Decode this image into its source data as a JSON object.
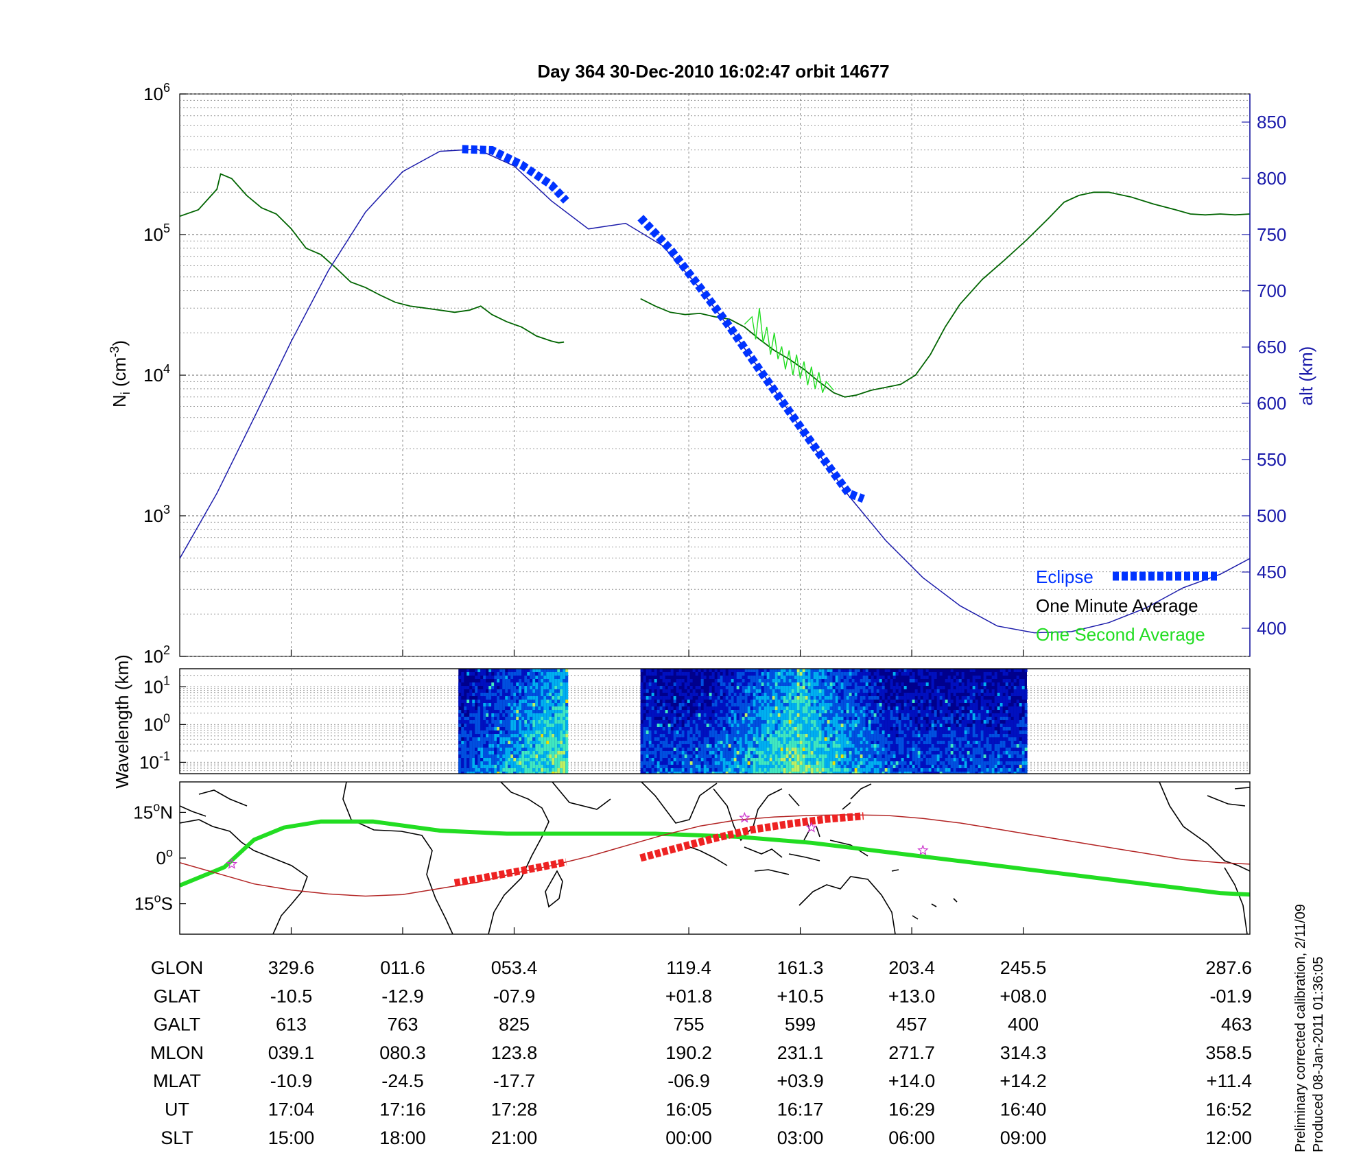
{
  "chart_data": [
    {
      "type": "line",
      "title": "Day 364  30-Dec-2010 16:02:47   orbit 14677",
      "ylabel_left": {
        "base": "N",
        "sub": "i",
        "unit": " (cm",
        "sup": "-3",
        "close": ")"
      },
      "ylabel_right": "alt (km)",
      "yscale_left": "log",
      "ylim_left": [
        100,
        1000000
      ],
      "ylim_right": [
        375,
        875
      ],
      "left_ticks": [
        {
          "base": "10",
          "exp": "2",
          "value": 100
        },
        {
          "base": "10",
          "exp": "3",
          "value": 1000
        },
        {
          "base": "10",
          "exp": "4",
          "value": 10000
        },
        {
          "base": "10",
          "exp": "5",
          "value": 100000
        },
        {
          "base": "10",
          "exp": "6",
          "value": 1000000
        }
      ],
      "right_ticks": [
        "400",
        "450",
        "500",
        "550",
        "600",
        "650",
        "700",
        "750",
        "800",
        "850"
      ],
      "grid": true,
      "legend": {
        "placement": "bottom-right",
        "entries": [
          {
            "label": "Eclipse",
            "color": "#0033ff"
          },
          {
            "label": "One Minute Average",
            "color": "#000000"
          },
          {
            "label": "One Second Average",
            "color": "#22dd22"
          }
        ]
      },
      "series": [
        {
          "name": "One Minute Average",
          "color": "#006400",
          "segments": [
            [
              [
                0.0,
                135000
              ],
              [
                0.25,
                150000
              ],
              [
                0.5,
                210000
              ],
              [
                0.55,
                270000
              ],
              [
                0.7,
                250000
              ],
              [
                0.9,
                190000
              ],
              [
                1.1,
                155000
              ],
              [
                1.3,
                140000
              ],
              [
                1.5,
                110000
              ],
              [
                1.7,
                80000
              ],
              [
                1.9,
                72000
              ],
              [
                2.1,
                58000
              ],
              [
                2.3,
                46000
              ],
              [
                2.5,
                42000
              ],
              [
                2.7,
                37000
              ],
              [
                2.9,
                33000
              ],
              [
                3.1,
                31000
              ],
              [
                3.3,
                30000
              ],
              [
                3.5,
                29000
              ],
              [
                3.7,
                28000
              ],
              [
                3.9,
                29000
              ],
              [
                4.05,
                31000
              ],
              [
                4.2,
                27000
              ],
              [
                4.4,
                24000
              ],
              [
                4.6,
                22000
              ],
              [
                4.8,
                19000
              ],
              [
                5.0,
                17500
              ],
              [
                5.1,
                17000
              ],
              [
                5.17,
                17200
              ]
            ],
            [
              [
                6.2,
                35000
              ],
              [
                6.4,
                31000
              ],
              [
                6.6,
                28000
              ],
              [
                6.8,
                27000
              ],
              [
                7.0,
                27500
              ],
              [
                7.2,
                26000
              ],
              [
                7.4,
                25000
              ],
              [
                7.6,
                22000
              ],
              [
                7.8,
                18000
              ],
              [
                8.0,
                15000
              ],
              [
                8.2,
                13000
              ],
              [
                8.4,
                11000
              ],
              [
                8.6,
                9000
              ],
              [
                8.8,
                7500
              ],
              [
                8.95,
                7000
              ],
              [
                9.1,
                7200
              ],
              [
                9.3,
                7800
              ],
              [
                9.5,
                8200
              ],
              [
                9.7,
                8600
              ],
              [
                9.9,
                10000
              ],
              [
                10.1,
                14000
              ],
              [
                10.3,
                22000
              ],
              [
                10.5,
                32000
              ],
              [
                10.8,
                48000
              ],
              [
                11.1,
                66000
              ],
              [
                11.4,
                92000
              ],
              [
                11.7,
                132000
              ],
              [
                11.9,
                170000
              ],
              [
                12.1,
                190000
              ],
              [
                12.3,
                200000
              ],
              [
                12.5,
                200000
              ],
              [
                12.8,
                185000
              ],
              [
                13.1,
                165000
              ],
              [
                13.4,
                150000
              ],
              [
                13.6,
                140000
              ],
              [
                13.8,
                138000
              ],
              [
                14.0,
                140000
              ],
              [
                14.2,
                138000
              ],
              [
                14.4,
                140000
              ]
            ]
          ]
        },
        {
          "name": "One Second Average",
          "color": "#22dd22",
          "segments": [
            [
              [
                7.6,
                23000
              ],
              [
                7.7,
                26000
              ],
              [
                7.75,
                18000
              ],
              [
                7.8,
                30000
              ],
              [
                7.85,
                17000
              ],
              [
                7.9,
                22000
              ],
              [
                7.95,
                14000
              ],
              [
                8.0,
                20000
              ],
              [
                8.05,
                13000
              ],
              [
                8.1,
                16000
              ],
              [
                8.15,
                11000
              ],
              [
                8.2,
                15000
              ],
              [
                8.25,
                10000
              ],
              [
                8.3,
                14000
              ],
              [
                8.35,
                9500
              ],
              [
                8.4,
                12500
              ],
              [
                8.45,
                8500
              ],
              [
                8.5,
                11500
              ],
              [
                8.55,
                8000
              ],
              [
                8.6,
                10500
              ],
              [
                8.65,
                7500
              ],
              [
                8.7,
                9000
              ],
              [
                8.8,
                7800
              ]
            ]
          ]
        },
        {
          "name": "alt",
          "axis": "right",
          "color": "#1a1aaa",
          "points": [
            [
              0.0,
              462
            ],
            [
              0.5,
              520
            ],
            [
              1.0,
              587
            ],
            [
              1.5,
              655
            ],
            [
              2.0,
              718
            ],
            [
              2.5,
              770
            ],
            [
              3.0,
              806
            ],
            [
              3.5,
              824
            ],
            [
              4.0,
              826
            ],
            [
              4.5,
              811
            ],
            [
              5.0,
              780
            ],
            [
              5.5,
              755
            ],
            [
              6.0,
              760
            ],
            [
              6.5,
              740
            ],
            [
              7.0,
              702
            ],
            [
              7.5,
              658
            ],
            [
              8.0,
              612
            ],
            [
              8.5,
              564
            ],
            [
              9.0,
              518
            ],
            [
              9.5,
              478
            ],
            [
              10.0,
              445
            ],
            [
              10.5,
              420
            ],
            [
              11.0,
              402
            ],
            [
              11.5,
              396
            ],
            [
              12.0,
              397
            ],
            [
              12.5,
              405
            ],
            [
              13.0,
              418
            ],
            [
              13.5,
              436
            ],
            [
              14.0,
              448
            ],
            [
              14.4,
              462
            ]
          ]
        }
      ],
      "eclipse_segments": [
        [
          [
            3.8,
            826
          ],
          [
            4.2,
            825
          ],
          [
            4.6,
            812
          ],
          [
            5.0,
            794
          ],
          [
            5.2,
            780
          ]
        ],
        [
          [
            6.2,
            765
          ],
          [
            6.6,
            737
          ],
          [
            7.0,
            703
          ],
          [
            7.4,
            668
          ],
          [
            7.8,
            630
          ],
          [
            8.2,
            593
          ],
          [
            8.6,
            556
          ],
          [
            9.0,
            520
          ],
          [
            9.2,
            515
          ]
        ]
      ]
    },
    {
      "type": "heatmap",
      "ylabel": "Wavelength (km)",
      "yscale": "log",
      "ylim": [
        0.05,
        30
      ],
      "y_ticks": [
        {
          "base": "10",
          "exp": "-1",
          "value": 0.1
        },
        {
          "base": "10",
          "exp": "0",
          "value": 1
        },
        {
          "base": "10",
          "exp": "1",
          "value": 10
        }
      ],
      "colormap": [
        "#00008c",
        "#0010c0",
        "#0050e0",
        "#00b0f0",
        "#40e8c0",
        "#c0f060",
        "#f0e000"
      ],
      "data_blocks": [
        {
          "x_start": 3.75,
          "x_end": 5.2,
          "mean_intensity": 0.25,
          "peak_x": 5.1
        },
        {
          "x_start": 6.2,
          "x_end": 11.4,
          "mean_intensity": 0.3,
          "peak_x": 8.3
        }
      ]
    },
    {
      "type": "scatter",
      "y_ticks": [
        {
          "label": "15",
          "deg": "o",
          "dir": "N",
          "value": 15
        },
        {
          "label": "0",
          "deg": "o",
          "dir": "",
          "value": 0
        },
        {
          "label": "15",
          "deg": "o",
          "dir": "S",
          "value": -15
        }
      ],
      "ylim": [
        -25,
        25
      ],
      "magnetic_equator": [
        [
          0.0,
          -9
        ],
        [
          0.6,
          -3
        ],
        [
          1.0,
          6
        ],
        [
          1.4,
          10
        ],
        [
          1.9,
          12
        ],
        [
          2.6,
          12
        ],
        [
          3.5,
          9
        ],
        [
          4.4,
          8
        ],
        [
          5.4,
          8
        ],
        [
          6.4,
          8
        ],
        [
          7.5,
          7
        ],
        [
          8.5,
          5
        ],
        [
          9.5,
          2
        ],
        [
          10.5,
          -1
        ],
        [
          11.5,
          -4
        ],
        [
          12.5,
          -7
        ],
        [
          13.5,
          -10
        ],
        [
          14.0,
          -11.5
        ],
        [
          14.4,
          -12
        ]
      ],
      "track": [
        [
          0.0,
          -1.5
        ],
        [
          0.5,
          -5
        ],
        [
          1.0,
          -8.5
        ],
        [
          1.5,
          -10.5
        ],
        [
          2.0,
          -11.8
        ],
        [
          2.5,
          -12.5
        ],
        [
          3.0,
          -12
        ],
        [
          3.5,
          -10
        ],
        [
          4.0,
          -8
        ],
        [
          4.5,
          -5
        ],
        [
          5.0,
          -2.5
        ],
        [
          5.5,
          0.5
        ],
        [
          6.0,
          4
        ],
        [
          6.5,
          7.5
        ],
        [
          7.0,
          10.5
        ],
        [
          7.5,
          12.5
        ],
        [
          8.0,
          13.5
        ],
        [
          8.5,
          14
        ],
        [
          9.0,
          14.2
        ],
        [
          9.5,
          14
        ],
        [
          10.0,
          13
        ],
        [
          10.5,
          11.5
        ],
        [
          11.0,
          9.5
        ],
        [
          11.5,
          7.5
        ],
        [
          12.0,
          5.5
        ],
        [
          12.5,
          3.5
        ],
        [
          13.0,
          1.5
        ],
        [
          13.5,
          -0.5
        ],
        [
          14.0,
          -1.5
        ],
        [
          14.4,
          -2
        ]
      ],
      "eclipse_segments": [
        [
          [
            3.7,
            -8.2
          ],
          [
            4.2,
            -6
          ],
          [
            4.7,
            -3.7
          ],
          [
            5.2,
            -1.3
          ]
        ],
        [
          [
            6.2,
            0
          ],
          [
            6.7,
            3.3
          ],
          [
            7.2,
            6.5
          ],
          [
            7.7,
            9.3
          ],
          [
            8.2,
            11.2
          ],
          [
            8.7,
            12.8
          ],
          [
            9.2,
            13.8
          ]
        ]
      ],
      "stars": [
        [
          0.7,
          -2
        ],
        [
          7.6,
          13.2
        ],
        [
          8.5,
          10
        ],
        [
          10.0,
          2.5
        ]
      ]
    }
  ],
  "table": {
    "rows": [
      {
        "label": "GLON",
        "values": [
          "329.6",
          "011.6",
          "053.4",
          "119.4",
          "161.3",
          "203.4",
          "245.5",
          "287.6"
        ]
      },
      {
        "label": "GLAT",
        "values": [
          "-10.5",
          "-12.9",
          "-07.9",
          "+01.8",
          "+10.5",
          "+13.0",
          "+08.0",
          "-01.9"
        ]
      },
      {
        "label": "GALT",
        "values": [
          "613",
          "763",
          "825",
          "755",
          "599",
          "457",
          "400",
          "463"
        ]
      },
      {
        "label": "MLON",
        "values": [
          "039.1",
          "080.3",
          "123.8",
          "190.2",
          "231.1",
          "271.7",
          "314.3",
          "358.5"
        ]
      },
      {
        "label": "MLAT",
        "values": [
          "-10.9",
          "-24.5",
          "-17.7",
          "-06.9",
          "+03.9",
          "+14.0",
          "+14.2",
          "+11.4"
        ]
      },
      {
        "label": "UT",
        "values": [
          "17:04",
          "17:16",
          "17:28",
          "16:05",
          "16:17",
          "16:29",
          "16:40",
          "16:52"
        ]
      },
      {
        "label": "SLT",
        "values": [
          "15:00",
          "18:00",
          "21:00",
          "00:00",
          "03:00",
          "06:00",
          "09:00",
          "12:00"
        ]
      }
    ],
    "col_x": [
      1.5,
      3.0,
      4.5,
      6.85,
      8.35,
      9.85,
      11.35,
      12.85
    ]
  },
  "side_note": {
    "line1": "Preliminary corrected calibration, 2/11/09",
    "line2": "Produced 08-Jan-2011 01:36:05"
  }
}
